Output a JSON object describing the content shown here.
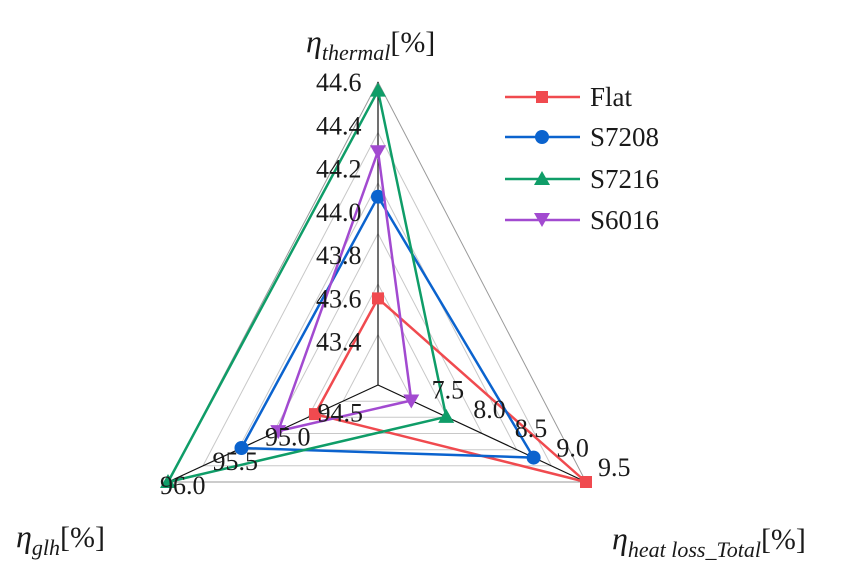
{
  "chart_data": {
    "type": "radar",
    "axes": [
      {
        "id": "thermal",
        "label_symbol": "η",
        "label_sub": "thermal",
        "label_unit": "[%]",
        "ticks": [
          "43.4",
          "43.6",
          "43.8",
          "44.0",
          "44.2",
          "44.4",
          "44.6"
        ],
        "range": [
          43.2,
          44.6
        ]
      },
      {
        "id": "heat_loss",
        "label_symbol": "η",
        "label_sub": "heat loss_Total",
        "label_unit": "[%]",
        "ticks": [
          "7.5",
          "8.0",
          "8.5",
          "9.0",
          "9.5"
        ],
        "range": [
          7.0,
          9.5
        ]
      },
      {
        "id": "glh",
        "label_symbol": "η",
        "label_sub": "glh",
        "label_unit": "[%]",
        "ticks": [
          "94.5",
          "95.0",
          "95.5",
          "96.0"
        ],
        "range": [
          94.0,
          96.0
        ]
      }
    ],
    "series": [
      {
        "name": "Flat",
        "color": "#f04a4f",
        "marker": "square",
        "values": [
          43.6,
          9.5,
          94.6
        ]
      },
      {
        "name": "S7208",
        "color": "#0b63ce",
        "marker": "circle",
        "values": [
          44.07,
          8.87,
          95.3
        ]
      },
      {
        "name": "S7216",
        "color": "#0f9d68",
        "marker": "triangle-up",
        "values": [
          44.56,
          7.82,
          96.0
        ]
      },
      {
        "name": "S6016",
        "color": "#a24ad0",
        "marker": "triangle-down",
        "values": [
          44.28,
          7.4,
          94.95
        ]
      }
    ],
    "grid": true,
    "legend_position": "top-right"
  }
}
